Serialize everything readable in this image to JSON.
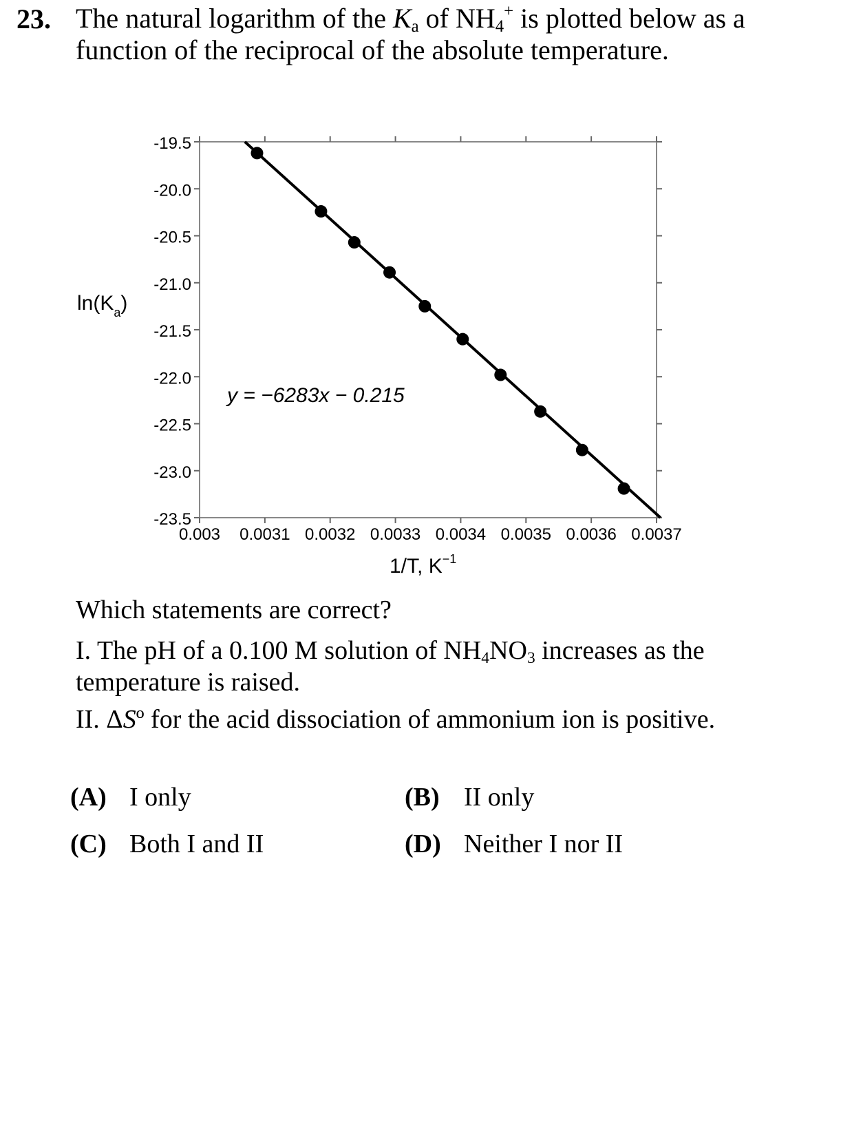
{
  "question": {
    "number": "23.",
    "stem_part1": "The natural logarithm of the ",
    "K": "K",
    "K_sub": "a",
    "stem_part2": " of NH",
    "nh_sub": "4",
    "nh_sup": "+",
    "stem_part3": " is plotted below as a function of the reciprocal of the absolute temperature."
  },
  "chart_data": {
    "type": "scatter",
    "ylabel": "ln(K",
    "ylabel_sub": "a",
    "ylabel_close": ")",
    "xlabel": "1/T, K",
    "xlabel_sup": "−1",
    "equation": "y = −6283x − 0.215",
    "xlim": [
      0.003,
      0.0037
    ],
    "ylim": [
      -23.5,
      -19.5
    ],
    "x_ticks": [
      "0.003",
      "0.0031",
      "0.0032",
      "0.0033",
      "0.0034",
      "0.0035",
      "0.0036",
      "0.0037"
    ],
    "y_ticks": [
      "-19.5",
      "-20.0",
      "-20.5",
      "-21.0",
      "-21.5",
      "-22.0",
      "-22.5",
      "-23.0",
      "-23.5"
    ],
    "points": [
      {
        "x": 0.003088,
        "y": -19.62
      },
      {
        "x": 0.003186,
        "y": -20.24
      },
      {
        "x": 0.003237,
        "y": -20.57
      },
      {
        "x": 0.003291,
        "y": -20.89
      },
      {
        "x": 0.003345,
        "y": -21.25
      },
      {
        "x": 0.003403,
        "y": -21.6
      },
      {
        "x": 0.003461,
        "y": -21.98
      },
      {
        "x": 0.003522,
        "y": -22.37
      },
      {
        "x": 0.003586,
        "y": -22.78
      },
      {
        "x": 0.00365,
        "y": -23.19
      }
    ],
    "fit": {
      "slope": -6283,
      "intercept": -0.215
    },
    "grid": false
  },
  "prompt": "Which statements are correct?",
  "statement1": {
    "a": "I.  The pH of a 0.100 M solution of NH",
    "s1": "4",
    "b": "NO",
    "s2": "3",
    "c": " increases as the temperature is raised."
  },
  "statement2": {
    "a": "II.  Δ",
    "S": "S",
    "deg": "º",
    "b": " for the acid dissociation of ammonium ion is positive."
  },
  "choices": [
    {
      "label": "(A)",
      "text": "I only"
    },
    {
      "label": "(B)",
      "text": "II only"
    },
    {
      "label": "(C)",
      "text": "Both I and II"
    },
    {
      "label": "(D)",
      "text": "Neither I nor II"
    }
  ]
}
